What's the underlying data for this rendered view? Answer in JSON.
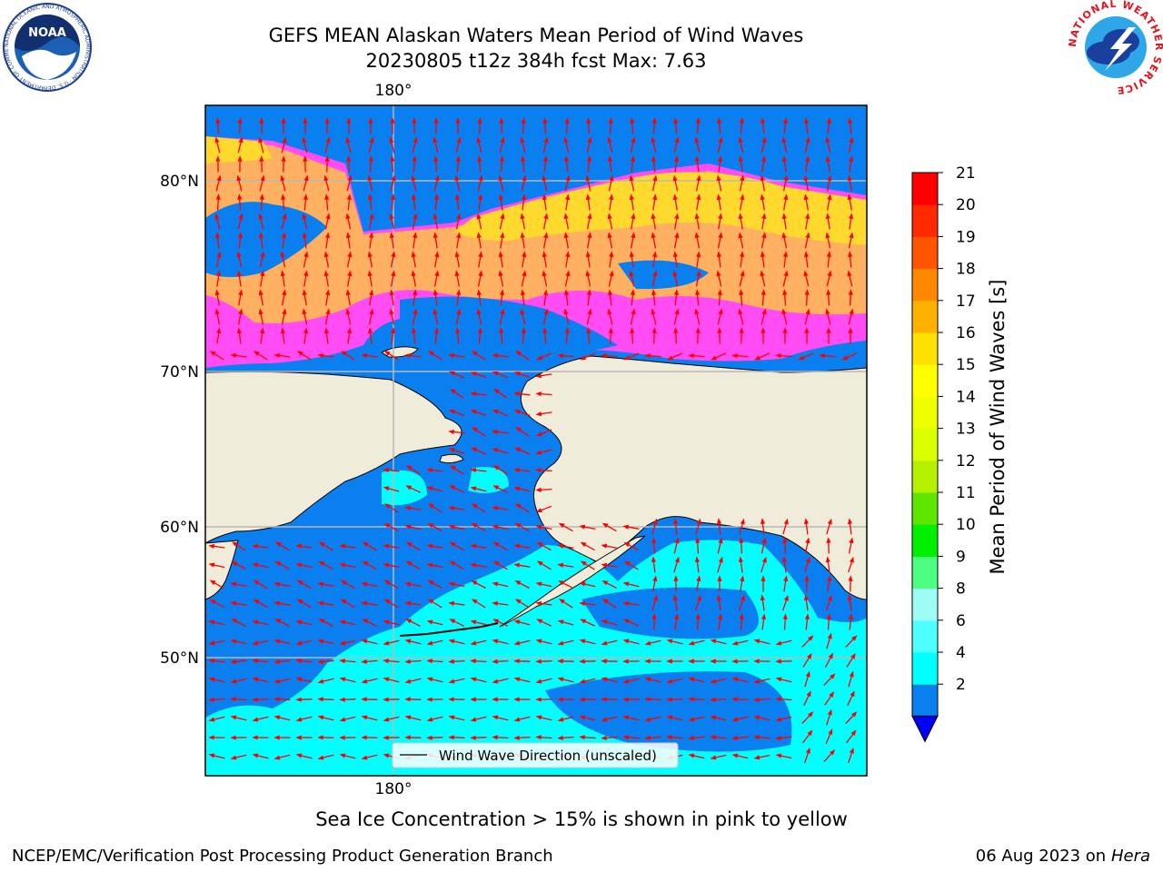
{
  "title_line1": "GEFS MEAN Alaskan Waters Mean Period of Wind Waves",
  "title_line2": "20230805 t12z 384h fcst   Max: 7.63",
  "map": {
    "lon_label_top": "180°",
    "lon_label_bottom": "180°",
    "lat_labels": [
      "80°N",
      "70°N",
      "60°N",
      "50°N"
    ],
    "legend_label": "Wind Wave Direction (unscaled)",
    "colors": {
      "land": "#efedda",
      "ocean_low": "#0a7ff0",
      "ocean_mid": "#00ffff",
      "ice_pink": "#ff4cf5",
      "ice_orange": "#ffb060",
      "ice_yellow": "#ffd92e",
      "arrow": "#ff0000",
      "grid": "#b8b8b8"
    }
  },
  "colorbar": {
    "label": "Mean Period of Wind Waves [s]",
    "tick_labels": [
      "21",
      "20",
      "19",
      "18",
      "17",
      "16",
      "15",
      "14",
      "13",
      "12",
      "11",
      "10",
      "9",
      "8",
      "6",
      "4",
      "2"
    ],
    "levels": [
      2,
      4,
      6,
      8,
      9,
      10,
      11,
      12,
      13,
      14,
      15,
      16,
      17,
      18,
      19,
      20,
      21
    ],
    "colors": [
      "#0a7ff0",
      "#00ffff",
      "#4dffff",
      "#9ffcf5",
      "#4dff80",
      "#00ee00",
      "#5ee600",
      "#b5f000",
      "#d9ff00",
      "#eeff00",
      "#ffff00",
      "#ffe000",
      "#ffb000",
      "#ff8800",
      "#ff5500",
      "#ff2a00",
      "#ff0000"
    ],
    "extend_color": "#0000ff"
  },
  "ice_note": "Sea Ice Concentration > 15% is shown in pink to yellow",
  "footer_left": "NCEP/EMC/Verification Post Processing Product Generation Branch",
  "footer_right_date": "06 Aug 2023 on",
  "footer_right_host": "Hera",
  "logos": {
    "noaa_text": "NOAA",
    "noaa_ring_text": "NATIONAL OCEANIC AND ATMOSPHERIC ADMINISTRATION · U.S. DEPARTMENT OF COMMERCE",
    "nws_ring_text": "NATIONAL WEATHER SERVICE"
  }
}
